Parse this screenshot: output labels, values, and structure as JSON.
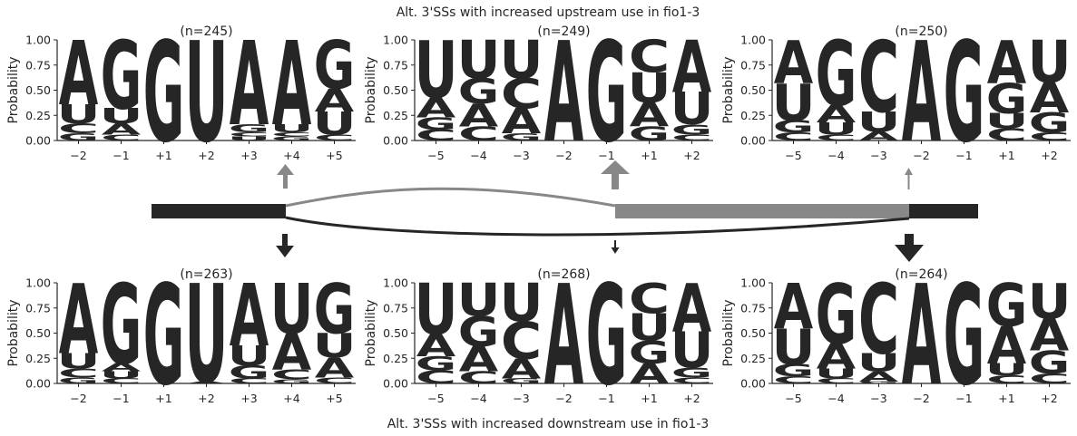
{
  "figure": {
    "top_title": "Alt. 3'SSs with increased upstream use in fio1-3",
    "bottom_title": "Alt. 3'SSs with increased downstream use in fio1-3"
  },
  "colors": {
    "A": "#009e73",
    "C": "#0072b2",
    "G": "#f0e442",
    "U": "#d55e00",
    "dark": "#262626",
    "gray": "#888888"
  },
  "chart_data": [
    {
      "type": "sequence_logo",
      "title": "(n=245)",
      "ylabel": "Probability",
      "ylim": [
        0,
        1
      ],
      "yticks": [
        "0.00",
        "0.25",
        "0.50",
        "0.75",
        "1.00"
      ],
      "positions": [
        "−2",
        "−1",
        "+1",
        "+2",
        "+3",
        "+4",
        "+5"
      ],
      "probabilities": [
        {
          "A": 0.64,
          "U": 0.19,
          "C": 0.1,
          "G": 0.07
        },
        {
          "G": 0.68,
          "U": 0.15,
          "A": 0.11,
          "C": 0.06
        },
        {
          "G": 1.0
        },
        {
          "U": 1.0
        },
        {
          "A": 0.84,
          "G": 0.08,
          "U": 0.04,
          "C": 0.04
        },
        {
          "A": 0.84,
          "U": 0.08,
          "G": 0.04,
          "C": 0.04
        },
        {
          "G": 0.48,
          "U": 0.23,
          "A": 0.23,
          "C": 0.06
        }
      ]
    },
    {
      "type": "sequence_logo",
      "title": "(n=249)",
      "ylabel": "Probability",
      "ylim": [
        0,
        1
      ],
      "yticks": [
        "0.00",
        "0.25",
        "0.50",
        "0.75",
        "1.00"
      ],
      "positions": [
        "−5",
        "−4",
        "−3",
        "−2",
        "−1",
        "+1",
        "+2"
      ],
      "probabilities": [
        {
          "U": 0.57,
          "A": 0.2,
          "G": 0.12,
          "C": 0.11
        },
        {
          "U": 0.38,
          "G": 0.25,
          "A": 0.23,
          "C": 0.14
        },
        {
          "U": 0.38,
          "C": 0.3,
          "A": 0.25,
          "G": 0.07
        },
        {
          "A": 1.0
        },
        {
          "G": 1.0
        },
        {
          "C": 0.32,
          "U": 0.3,
          "A": 0.24,
          "G": 0.14
        },
        {
          "A": 0.52,
          "U": 0.32,
          "G": 0.1,
          "C": 0.06
        }
      ]
    },
    {
      "type": "sequence_logo",
      "title": "(n=250)",
      "ylabel": "Probability",
      "ylim": [
        0,
        1
      ],
      "yticks": [
        "0.00",
        "0.25",
        "0.50",
        "0.75",
        "1.00"
      ],
      "positions": [
        "−5",
        "−4",
        "−3",
        "−2",
        "−1",
        "+1",
        "+2"
      ],
      "probabilities": [
        {
          "A": 0.43,
          "U": 0.37,
          "G": 0.12,
          "C": 0.08
        },
        {
          "G": 0.65,
          "A": 0.17,
          "U": 0.12,
          "C": 0.06
        },
        {
          "C": 0.71,
          "U": 0.2,
          "A": 0.09
        },
        {
          "A": 1.0
        },
        {
          "G": 1.0
        },
        {
          "A": 0.43,
          "G": 0.3,
          "U": 0.15,
          "C": 0.12
        },
        {
          "U": 0.42,
          "A": 0.3,
          "G": 0.2,
          "C": 0.08
        }
      ]
    },
    {
      "type": "sequence_logo",
      "title": "(n=263)",
      "ylabel": "Probability",
      "ylim": [
        0,
        1
      ],
      "yticks": [
        "0.00",
        "0.25",
        "0.50",
        "0.75",
        "1.00"
      ],
      "positions": [
        "−2",
        "−1",
        "+1",
        "+2",
        "+3",
        "+4",
        "+5"
      ],
      "probabilities": [
        {
          "A": 0.7,
          "U": 0.15,
          "C": 0.09,
          "G": 0.06
        },
        {
          "G": 0.8,
          "A": 0.08,
          "U": 0.07,
          "C": 0.05
        },
        {
          "G": 1.0
        },
        {
          "U": 0.98,
          "A": 0.02
        },
        {
          "A": 0.62,
          "U": 0.2,
          "G": 0.13,
          "C": 0.05
        },
        {
          "U": 0.5,
          "A": 0.36,
          "C": 0.1,
          "G": 0.04
        },
        {
          "G": 0.5,
          "U": 0.24,
          "A": 0.2,
          "C": 0.06
        }
      ]
    },
    {
      "type": "sequence_logo",
      "title": "(n=268)",
      "ylabel": "Probability",
      "ylim": [
        0,
        1
      ],
      "yticks": [
        "0.00",
        "0.25",
        "0.50",
        "0.75",
        "1.00"
      ],
      "positions": [
        "−5",
        "−4",
        "−3",
        "−2",
        "−1",
        "+1",
        "+2"
      ],
      "probabilities": [
        {
          "U": 0.51,
          "A": 0.22,
          "G": 0.14,
          "C": 0.13
        },
        {
          "U": 0.33,
          "G": 0.3,
          "A": 0.25,
          "C": 0.12
        },
        {
          "U": 0.38,
          "C": 0.37,
          "A": 0.2,
          "G": 0.05
        },
        {
          "A": 1.0
        },
        {
          "G": 1.0
        },
        {
          "C": 0.3,
          "U": 0.27,
          "G": 0.23,
          "A": 0.2
        },
        {
          "A": 0.48,
          "U": 0.36,
          "G": 0.1,
          "C": 0.06
        }
      ]
    },
    {
      "type": "sequence_logo",
      "title": "(n=264)",
      "ylabel": "Probability",
      "ylim": [
        0,
        1
      ],
      "yticks": [
        "0.00",
        "0.25",
        "0.50",
        "0.75",
        "1.00"
      ],
      "positions": [
        "−5",
        "−4",
        "−3",
        "−2",
        "−1",
        "+1",
        "+2"
      ],
      "probabilities": [
        {
          "A": 0.45,
          "U": 0.36,
          "G": 0.12,
          "C": 0.07
        },
        {
          "G": 0.6,
          "A": 0.25,
          "U": 0.1,
          "C": 0.05
        },
        {
          "C": 0.7,
          "U": 0.18,
          "A": 0.1,
          "G": 0.02
        },
        {
          "A": 1.0
        },
        {
          "G": 1.0
        },
        {
          "G": 0.43,
          "A": 0.37,
          "U": 0.12,
          "C": 0.08
        },
        {
          "U": 0.35,
          "A": 0.32,
          "G": 0.23,
          "C": 0.1
        }
      ]
    }
  ]
}
